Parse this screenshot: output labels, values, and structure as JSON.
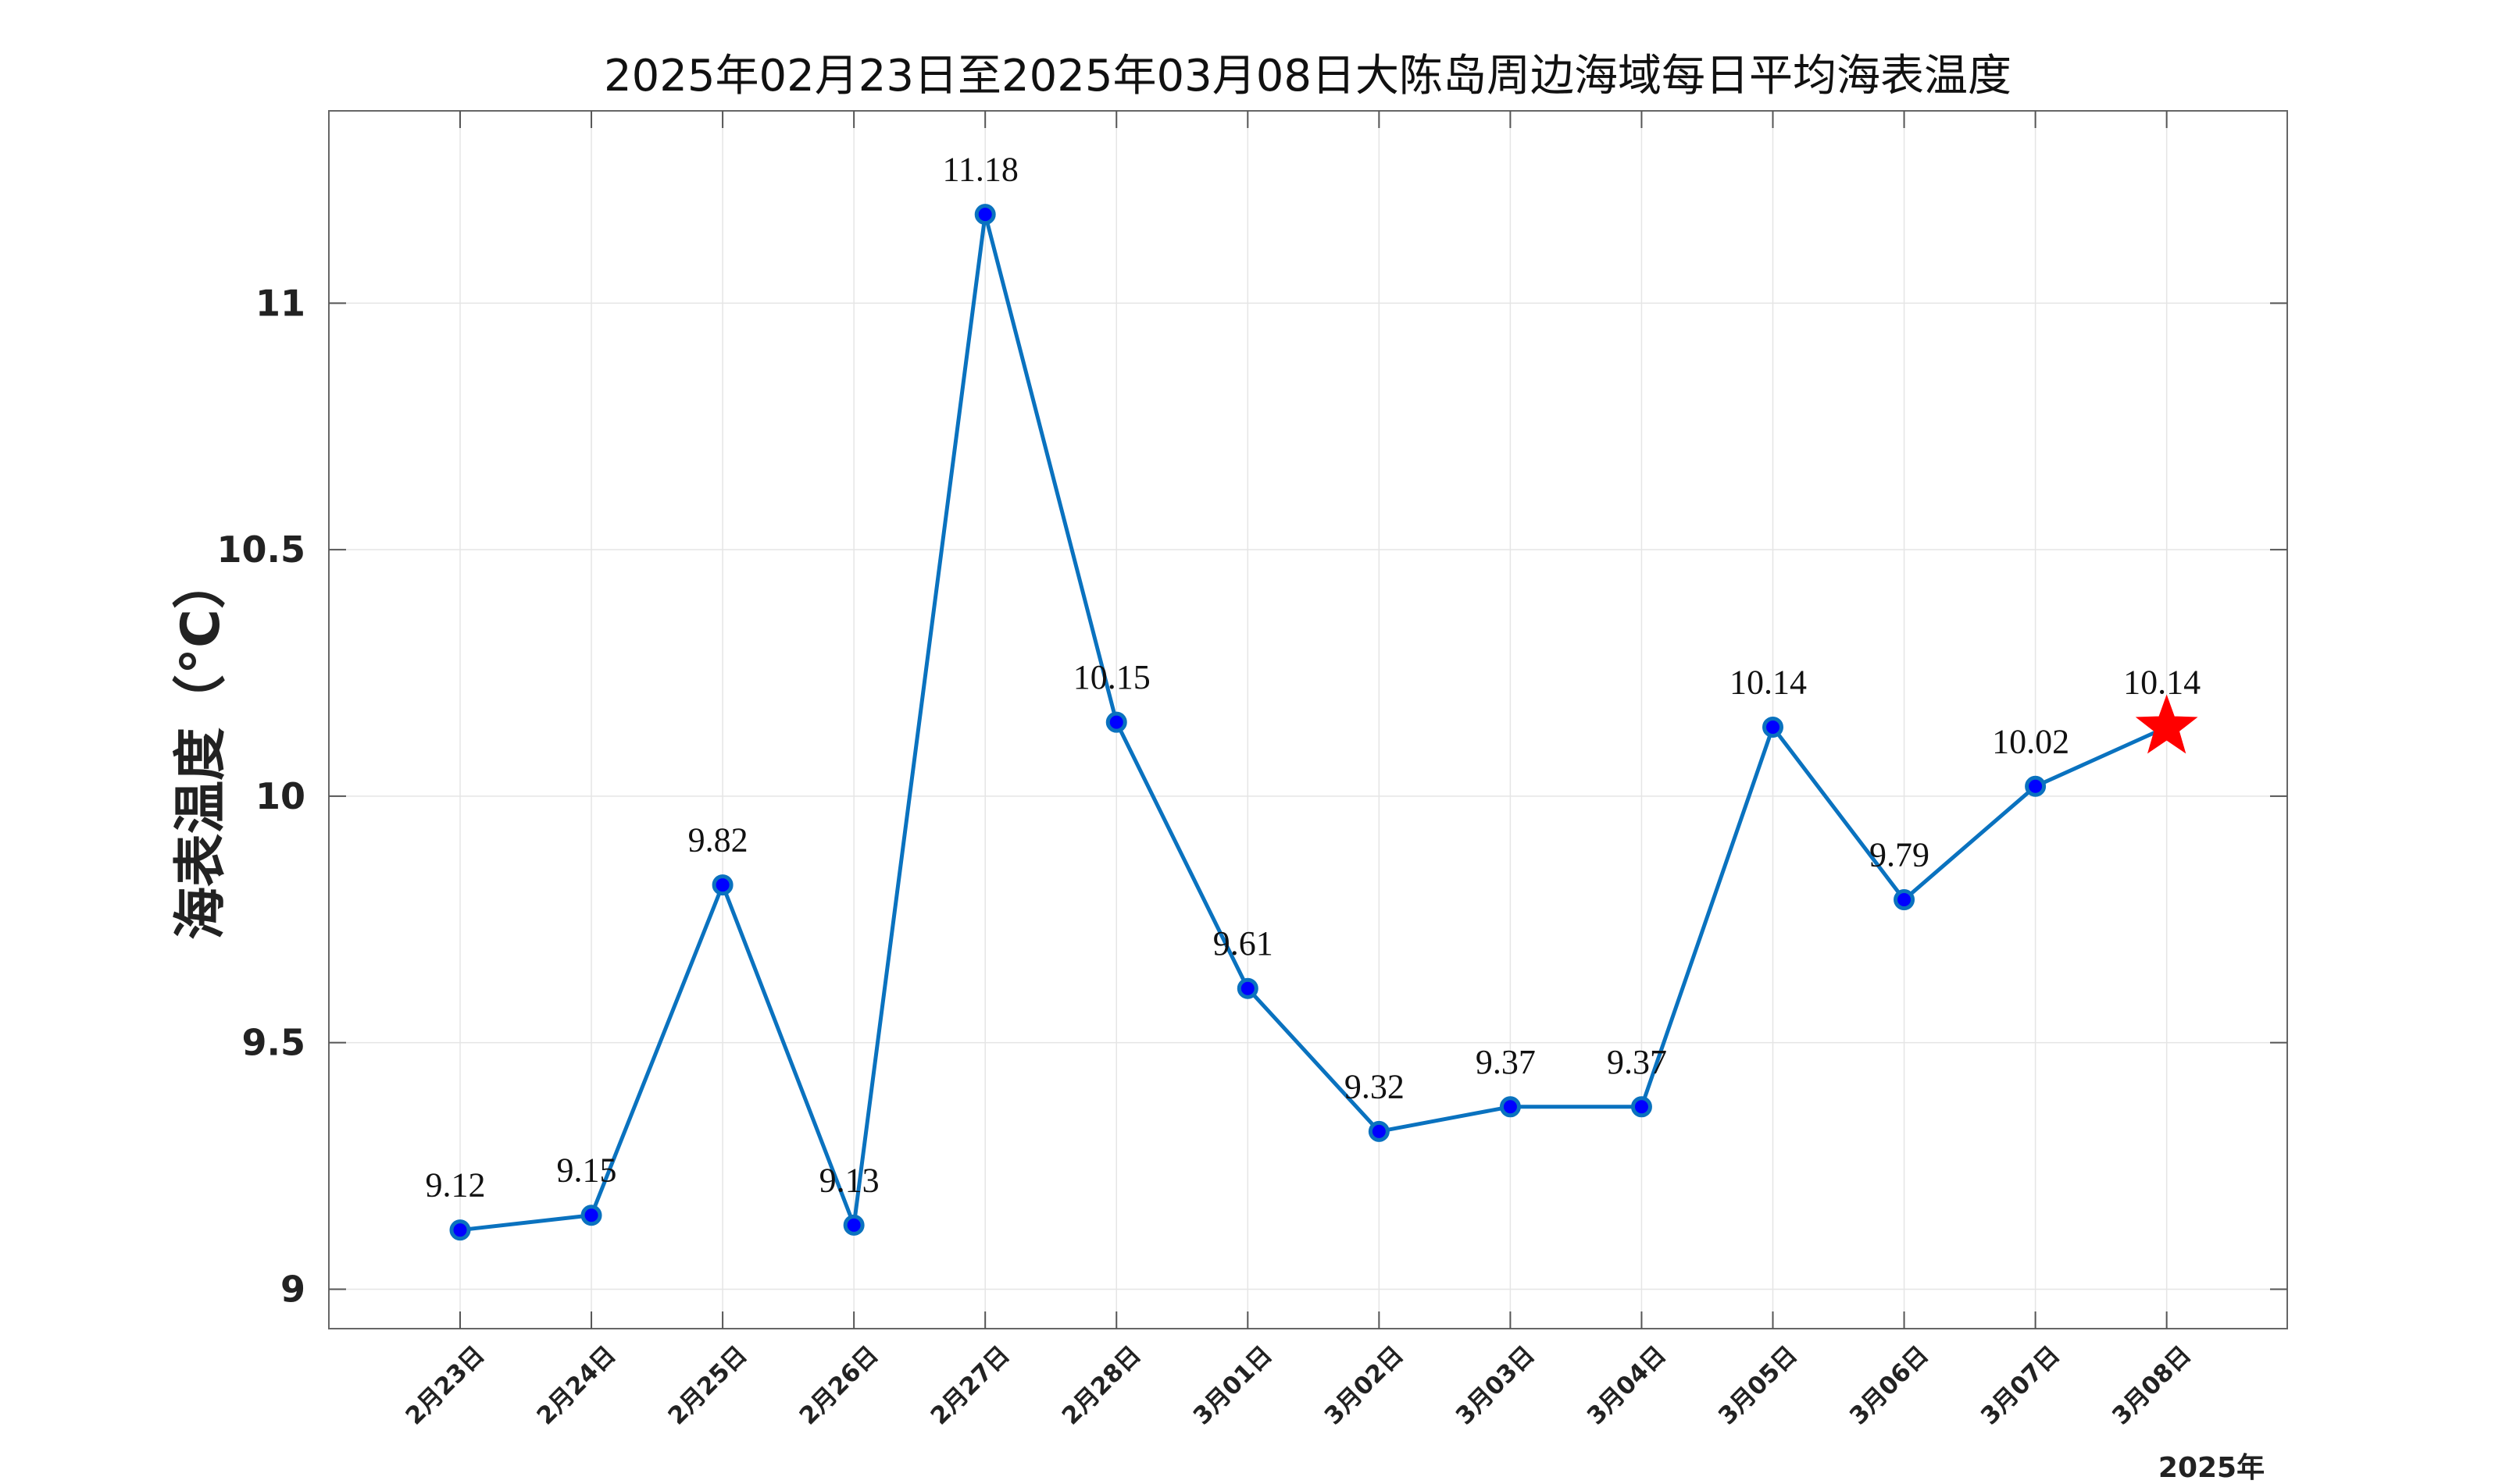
{
  "chart_data": {
    "type": "line",
    "title": "2025年02月23日至2025年03月08日大陈岛周边海域每日平均海表温度",
    "xlabel": "",
    "ylabel": "海表温度（°C）",
    "x_extra_label": "2025年",
    "categories": [
      "2月23日",
      "2月24日",
      "2月25日",
      "2月26日",
      "2月27日",
      "2月28日",
      "3月01日",
      "3月02日",
      "3月03日",
      "3月04日",
      "3月05日",
      "3月06日",
      "3月07日",
      "3月08日"
    ],
    "series": [
      {
        "values": [
          9.12,
          9.15,
          9.82,
          9.13,
          11.18,
          10.15,
          9.61,
          9.32,
          9.37,
          9.37,
          10.14,
          9.79,
          10.02,
          10.14
        ],
        "color": "#0a72bf",
        "marker_color": "#0000ff",
        "last_marker": "red-star"
      }
    ],
    "data_labels": [
      "9.12",
      "9.15",
      "9.82",
      "9.13",
      "11.18",
      "10.15",
      "9.61",
      "9.32",
      "9.37",
      "9.37",
      "10.14",
      "9.79",
      "10.02",
      "10.14"
    ],
    "y_ticks": [
      "9",
      "9.5",
      "10",
      "10.5",
      "11"
    ],
    "ylim": [
      8.92,
      11.39
    ],
    "grid": true
  },
  "colors": {
    "line": "#0a72bf",
    "marker_fill": "#0000ff",
    "star": "#ff0000",
    "grid": "#e5e5e5",
    "axis": "#555555"
  }
}
